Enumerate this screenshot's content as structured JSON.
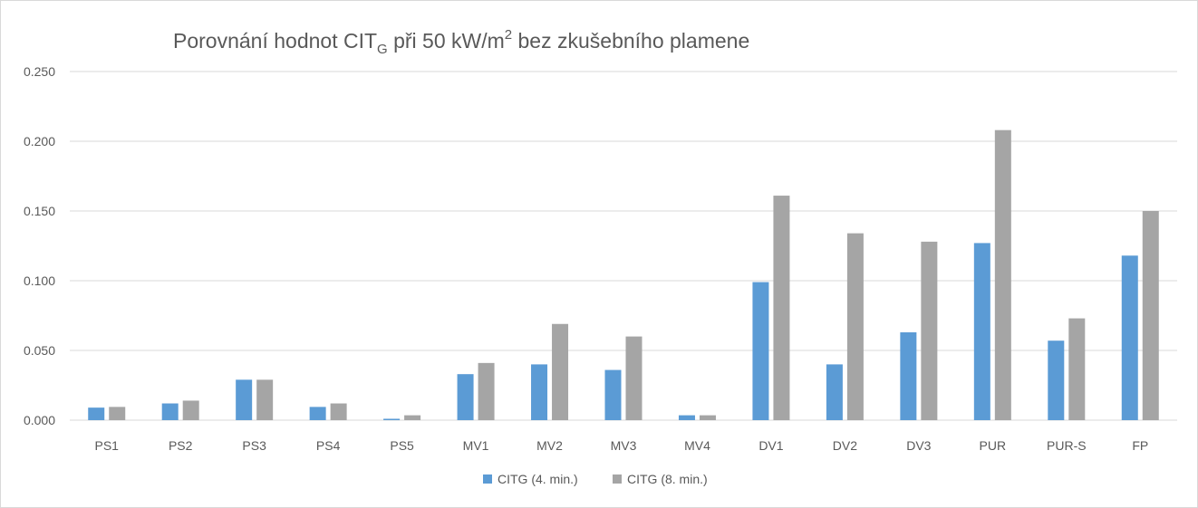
{
  "chart_data": {
    "type": "bar",
    "title": {
      "main": "Porovnání hodnot CIT",
      "sub": "G",
      "mid": " při 50 kW/m",
      "sup": "2",
      "end": " bez zkušebního plamene"
    },
    "categories": [
      "PS1",
      "PS2",
      "PS3",
      "PS4",
      "PS5",
      "MV1",
      "MV2",
      "MV3",
      "MV4",
      "DV1",
      "DV2",
      "DV3",
      "PUR",
      "PUR-S",
      "FP"
    ],
    "series": [
      {
        "name": "CITG (4. min.)",
        "color": "#5b9bd5",
        "values": [
          0.009,
          0.012,
          0.029,
          0.0095,
          0.001,
          0.033,
          0.04,
          0.036,
          0.0035,
          0.099,
          0.04,
          0.063,
          0.127,
          0.057,
          0.118
        ]
      },
      {
        "name": "CITG (8. min.)",
        "color": "#a5a5a5",
        "values": [
          0.0095,
          0.014,
          0.029,
          0.012,
          0.0035,
          0.041,
          0.069,
          0.06,
          0.0035,
          0.161,
          0.134,
          0.128,
          0.208,
          0.073,
          0.15
        ]
      }
    ],
    "yticks": [
      "0.000",
      "0.050",
      "0.100",
      "0.150",
      "0.200",
      "0.250"
    ],
    "ylim": [
      0,
      0.25
    ],
    "grid": true,
    "legend_position": "bottom",
    "xlabel": "",
    "ylabel": ""
  }
}
